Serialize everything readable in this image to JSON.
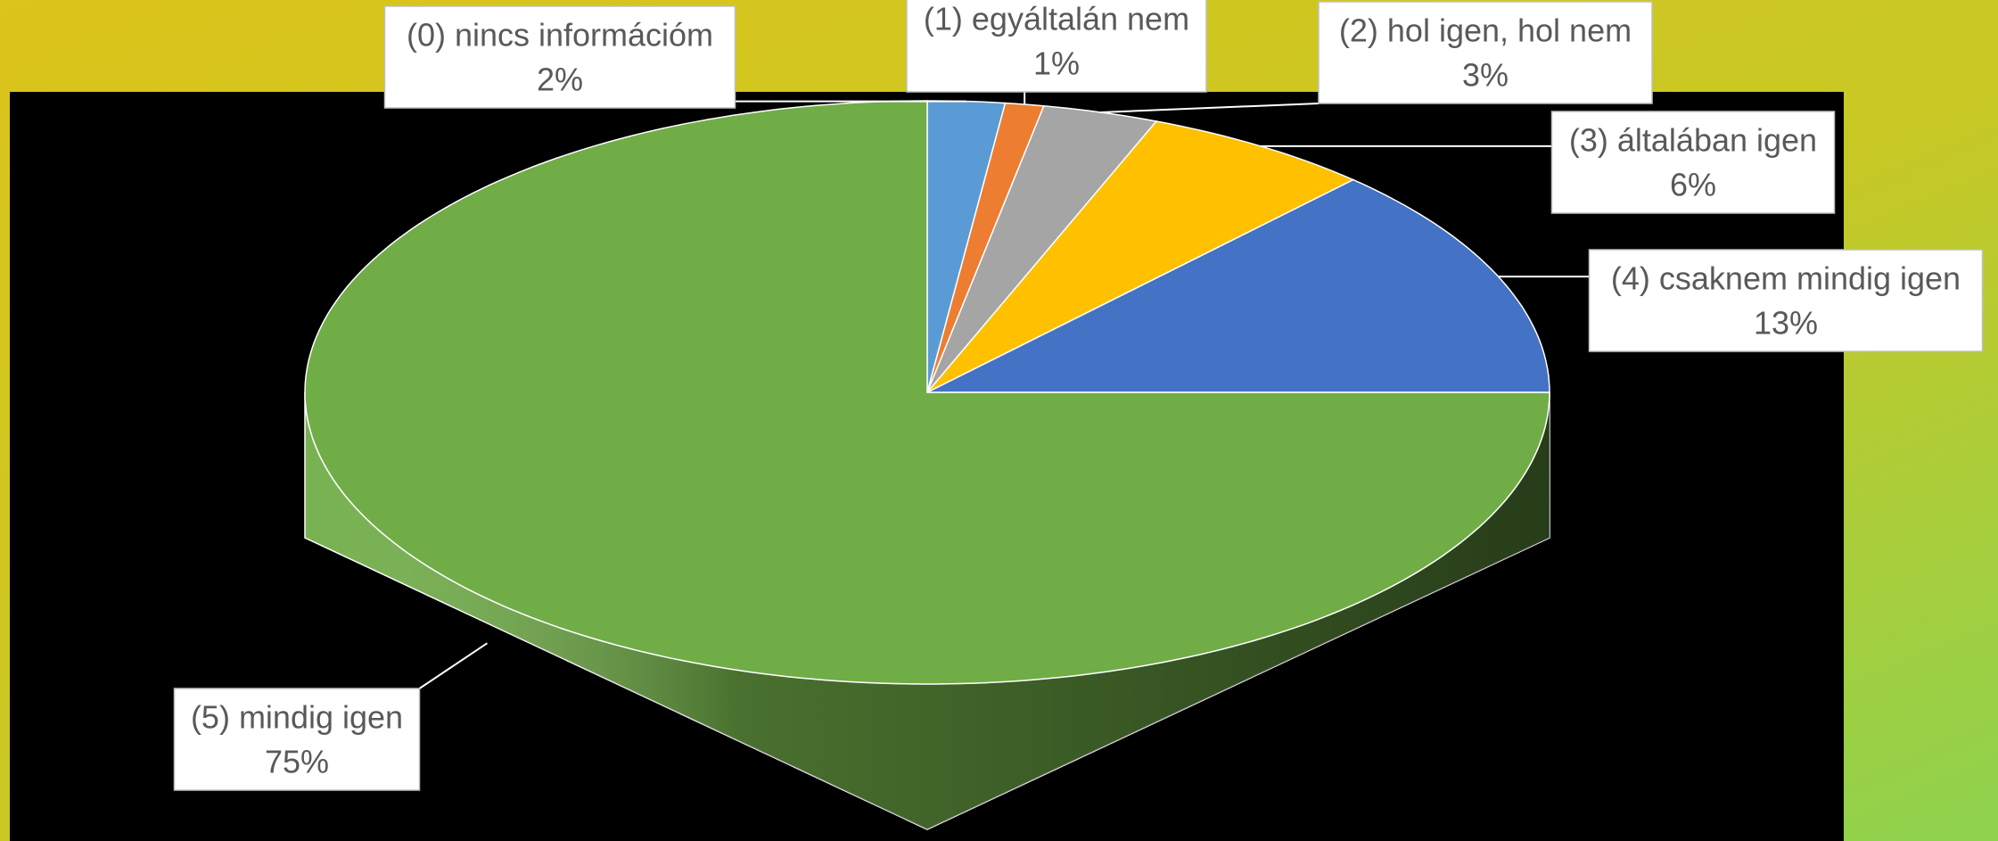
{
  "chart_data": {
    "type": "pie",
    "categories": [
      "(0) nincs információm",
      "(1) egyáltalán nem",
      "(2) hol igen, hol nem",
      "(3) általában igen",
      "(4) csaknem mindig igen",
      "(5) mindig igen"
    ],
    "values": [
      2,
      1,
      3,
      6,
      13,
      75
    ],
    "value_labels": [
      "2%",
      "1%",
      "3%",
      "6%",
      "13%",
      "75%"
    ],
    "colors": [
      "#5b9bd5",
      "#ed7d31",
      "#a5a5a5",
      "#ffc000",
      "#4472c4",
      "#70ad47"
    ]
  }
}
